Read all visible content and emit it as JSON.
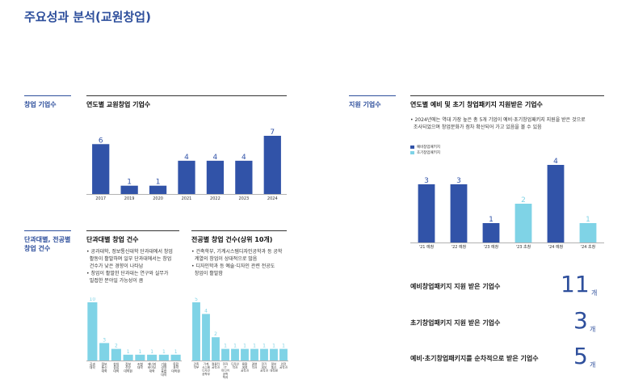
{
  "page_title": "주요성과 분석(교원창업)",
  "left": {
    "side_label_1": "창업 기업수",
    "side_label_2": [
      "단과대별, 전공별",
      "창업 건수"
    ],
    "yearly_title": "연도별 교원창업 기업수",
    "college_title": "단과대별 창업 건수",
    "college_bullets": [
      [
        "공과대학, 정보통신대학 단과대에서 창업",
        "활동이 활발하며 일부 단과대에서는 창업",
        "건수가 낮은 경향이 나타남"
      ],
      [
        "창업이 활발한 단과대는 연구와 실무가",
        "밀접한 분야일 가능성이 큼"
      ]
    ],
    "major_title": "전공별 창업 건수(상위 10개)",
    "major_bullets": [
      [
        "건축학부, 기계시스템디자인공학과 등 공학",
        "계열의 창업이 상대적으로 많음"
      ],
      [
        "디자인학과 등 예술·디자인 관련 전공도",
        "창업이 활발함"
      ]
    ]
  },
  "right": {
    "side_label": "지원 기업수",
    "title": "연도별 예비 및 초기 창업패키지 지원받은 기업수",
    "bullet": [
      "2024년에는 역대 가장 높은 총 5개 기업이 예비·초기창업패키지 지원을 받은 것으로",
      "조사되었으며 창업문화가 점차 확산되어 가고 있음을 볼 수 있음"
    ],
    "legend": [
      "예비창업패키지",
      "초기창업패키지"
    ],
    "stats": [
      {
        "label": "예비창업패키지 지원 받은 기업수",
        "value": "11",
        "unit": "개"
      },
      {
        "label": "초기창업패키지 지원 받은 기업수",
        "value": "3",
        "unit": "개"
      },
      {
        "label": "예비·초기창업패키지를 순차적으로 받은 기업수",
        "value": "5",
        "unit": "개"
      }
    ]
  },
  "colors": {
    "dark": "#3153a8",
    "light": "#7fd3e6",
    "accent": "#2e4f9c"
  },
  "chart_data": [
    {
      "type": "bar",
      "title": "연도별 교원창업 기업수",
      "categories": [
        "2017",
        "2019",
        "2020",
        "2021",
        "2022",
        "2023",
        "2024"
      ],
      "values": [
        6,
        1,
        1,
        4,
        4,
        4,
        7
      ],
      "ylim": [
        0,
        7
      ]
    },
    {
      "type": "bar",
      "title": "단과대별 창업 건수",
      "categories": [
        [
          "공과",
          "대학"
        ],
        [
          "정보",
          "통신",
          "대학"
        ],
        [
          "창의",
          "융합",
          "대학"
        ],
        [
          "정보",
          "전문",
          "대학원"
        ],
        [
          "조형",
          "대학"
        ],
        [
          "에너지",
          "바이오",
          "대학"
        ],
        [
          "기술",
          "경영",
          "융합",
          "대학"
        ],
        [
          "융합",
          "과학",
          "대학원"
        ]
      ],
      "values": [
        10,
        3,
        2,
        1,
        1,
        1,
        1,
        1
      ],
      "ylim": [
        0,
        10
      ]
    },
    {
      "type": "bar",
      "title": "전공별 창업 건수(상위 10개)",
      "categories": [
        [
          "건축",
          "학부"
        ],
        [
          "기계",
          "시스템",
          "디자인",
          "공학부"
        ],
        [
          "컴퓨터",
          "공학과"
        ],
        [
          "전자",
          "IT",
          "미디어",
          "공학",
          "학과"
        ],
        [
          "디자인",
          "학과"
        ],
        [
          "융합",
          "생명",
          "공학과"
        ],
        [
          "경영",
          "학과"
        ],
        [
          "전기",
          "정보",
          "공학과"
        ],
        [
          "정보",
          "통신",
          "대학원"
        ],
        [
          "안전",
          "공학과"
        ]
      ],
      "values": [
        5,
        4,
        2,
        1,
        1,
        1,
        1,
        1,
        1,
        1
      ],
      "ylim": [
        0,
        5
      ]
    },
    {
      "type": "bar",
      "title": "연도별 예비 및 초기 창업패키지 지원받은 기업수",
      "categories": [
        "'21 예창",
        "'22 예창",
        "'23 예창",
        "'23 초창",
        "'24 예창",
        "'24 초창"
      ],
      "series": [
        {
          "name": "예비창업패키지",
          "values": [
            3,
            3,
            1,
            null,
            4,
            null
          ]
        },
        {
          "name": "초기창업패키지",
          "values": [
            null,
            null,
            null,
            2,
            null,
            1
          ]
        }
      ],
      "ylim": [
        0,
        4
      ]
    }
  ]
}
